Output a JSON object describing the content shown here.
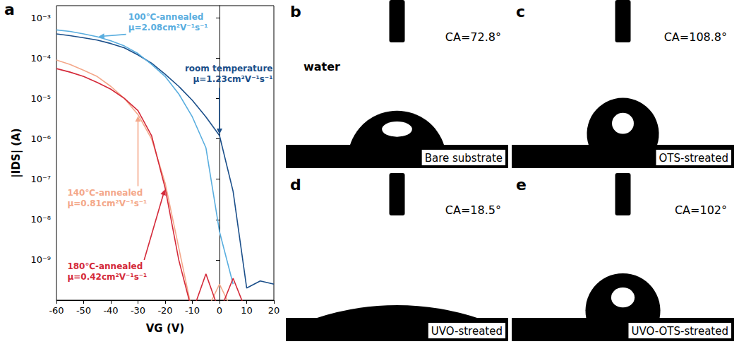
{
  "chart_data": {
    "type": "line",
    "panel_label": "a",
    "x_label": "VG (V)",
    "y_label": "|IDS| (A)",
    "log": "y",
    "grid": false,
    "x": [
      -60,
      -55,
      -50,
      -45,
      -40,
      -35,
      -30,
      -25,
      -20,
      -15,
      -10,
      -5,
      0,
      5,
      10,
      15,
      20
    ],
    "xlim": [
      -60,
      20
    ],
    "xticks": [
      -60,
      -50,
      -40,
      -30,
      -20,
      -10,
      0,
      10,
      20
    ],
    "ylim": [
      1e-10,
      0.002
    ],
    "yticks": [
      {
        "value": 1e-09,
        "label": "10⁻⁹"
      },
      {
        "value": 1e-08,
        "label": "10⁻⁸"
      },
      {
        "value": 1e-07,
        "label": "10⁻⁷"
      },
      {
        "value": 1e-06,
        "label": "10⁻⁶"
      },
      {
        "value": 1e-05,
        "label": "10⁻⁵"
      },
      {
        "value": 0.0001,
        "label": "10⁻⁴"
      },
      {
        "value": 0.001,
        "label": "10⁻³"
      }
    ],
    "series": [
      {
        "name": "room temperature",
        "annotation": "μ=1.23cm²V⁻¹s⁻¹",
        "color": "#1b4f8a",
        "values": [
          0.0004,
          0.00036,
          0.00032,
          0.00028,
          0.00023,
          0.00018,
          0.00012,
          7.5e-05,
          4e-05,
          2e-05,
          9e-06,
          3.5e-06,
          1.2e-06,
          5e-08,
          2e-10,
          3e-10,
          2.5e-10
        ]
      },
      {
        "name": "100℃-annealed",
        "annotation": "μ=2.08cm²V⁻¹s⁻¹",
        "color": "#5aaedf",
        "values": [
          0.0005,
          0.00046,
          0.0004,
          0.00034,
          0.00027,
          0.0002,
          0.00013,
          7e-05,
          3.5e-05,
          1.3e-05,
          3.5e-06,
          6e-07,
          5e-09,
          2.5e-10,
          null,
          null,
          null
        ]
      },
      {
        "name": "140℃-annealed",
        "annotation": "μ=0.81cm²V⁻¹s⁻¹",
        "color": "#f4a88a",
        "values": [
          9e-05,
          7e-05,
          5e-05,
          3.5e-05,
          2e-05,
          1e-05,
          4e-06,
          1e-06,
          8e-08,
          2e-09,
          5e-11,
          5e-11,
          2.5e-10,
          5e-11,
          null,
          null,
          null
        ]
      },
      {
        "name": "180℃-annealed",
        "annotation": "μ=0.42cm²V⁻¹s⁻¹",
        "color": "#d42a3a",
        "values": [
          5.5e-05,
          4.5e-05,
          3.5e-05,
          2.5e-05,
          1.7e-05,
          1e-05,
          5e-06,
          1.2e-06,
          6e-08,
          1e-09,
          5e-11,
          4.5e-10,
          5e-11,
          3.5e-10,
          5e-11,
          null,
          null
        ]
      }
    ]
  },
  "photos": [
    {
      "panel_label": "b",
      "contact_angle": 72.8,
      "angle_label": "CA=72.8°",
      "substrate_label": "Bare substrate",
      "liquid_label": "water"
    },
    {
      "panel_label": "c",
      "contact_angle": 108.8,
      "angle_label": "CA=108.8°",
      "substrate_label": "OTS-streated"
    },
    {
      "panel_label": "d",
      "contact_angle": 18.5,
      "angle_label": "CA=18.5°",
      "substrate_label": "UVO-streated"
    },
    {
      "panel_label": "e",
      "contact_angle": 102,
      "angle_label": "CA=102°",
      "substrate_label": "UVO-OTS-streated"
    }
  ]
}
